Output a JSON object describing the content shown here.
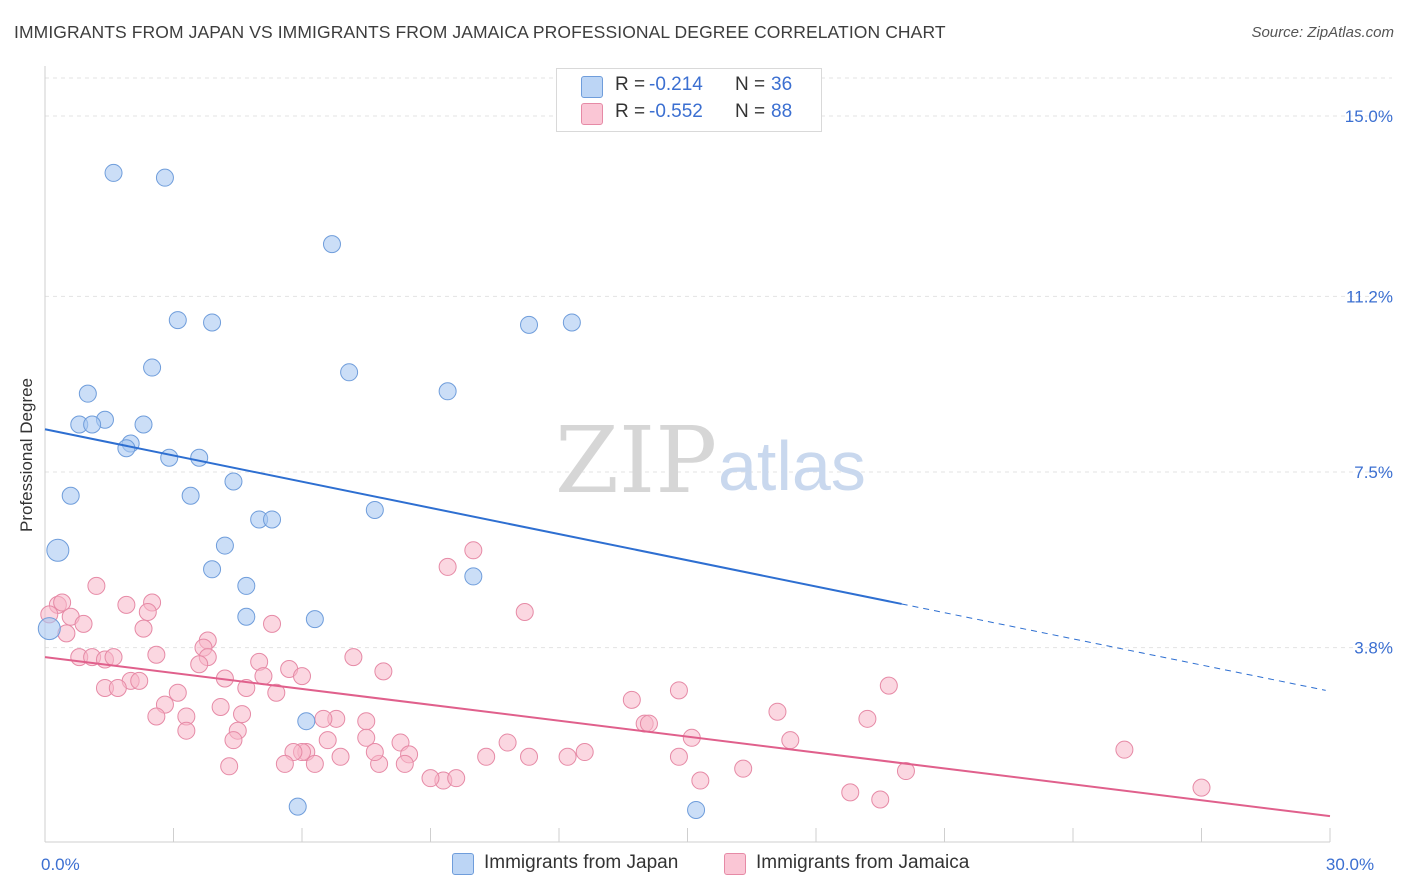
{
  "title": "IMMIGRANTS FROM JAPAN VS IMMIGRANTS FROM JAMAICA PROFESSIONAL DEGREE CORRELATION CHART",
  "source": "Source: ZipAtlas.com",
  "watermark": {
    "zip": "ZIP",
    "atlas": "atlas"
  },
  "legend_top": [
    {
      "r_label": "R =",
      "r_value": "-0.214",
      "n_label": "N =",
      "n_value": "36",
      "color": "#a9c8f2"
    },
    {
      "r_label": "R =",
      "r_value": "-0.552",
      "n_label": "N =",
      "n_value": "88",
      "color": "#f7b6c8"
    }
  ],
  "legend_bottom": [
    {
      "label": "Immigrants from Japan",
      "color": "#a9c8f2"
    },
    {
      "label": "Immigrants from Jamaica",
      "color": "#f7b6c8"
    }
  ],
  "colors": {
    "japan_fill": "#a9c8f2",
    "japan_stroke": "#6f9ddb",
    "japan_line": "#2e6fd1",
    "jamaica_fill": "#f7b6c8",
    "jamaica_stroke": "#e68aa6",
    "jamaica_line": "#e0608c",
    "tick_label": "#3b6fd1",
    "grid": "#e3e3e3"
  },
  "chart_data": {
    "type": "scatter",
    "title": "IMMIGRANTS FROM JAPAN VS IMMIGRANTS FROM JAMAICA PROFESSIONAL DEGREE CORRELATION CHART",
    "xlabel": "",
    "ylabel": "Professional Degree",
    "xlim": [
      0,
      30
    ],
    "ylim": [
      0,
      15.8
    ],
    "x_tick_labels": [
      {
        "value": 0,
        "label": "0.0%"
      },
      {
        "value": 30,
        "label": "30.0%"
      }
    ],
    "y_ticks": [
      {
        "value": 3.8,
        "label": "3.8%"
      },
      {
        "value": 7.5,
        "label": "7.5%"
      },
      {
        "value": 11.2,
        "label": "11.2%"
      },
      {
        "value": 15.0,
        "label": "15.0%"
      }
    ],
    "series": [
      {
        "name": "Immigrants from Japan",
        "r": -0.214,
        "n": 36,
        "trend": {
          "x0": 0,
          "y0": 8.4,
          "x1": 20.0,
          "y1": 4.72,
          "dash_x1": 29.9,
          "dash_y1": 2.9
        },
        "points": [
          [
            1.6,
            13.8
          ],
          [
            2.8,
            13.7
          ],
          [
            6.7,
            12.3
          ],
          [
            3.1,
            10.7
          ],
          [
            3.9,
            10.65
          ],
          [
            11.3,
            10.6
          ],
          [
            12.3,
            10.65
          ],
          [
            2.5,
            9.7
          ],
          [
            7.1,
            9.6
          ],
          [
            1.0,
            9.15
          ],
          [
            9.4,
            9.2
          ],
          [
            1.4,
            8.6
          ],
          [
            0.8,
            8.5
          ],
          [
            1.1,
            8.5
          ],
          [
            2.3,
            8.5
          ],
          [
            2.0,
            8.1
          ],
          [
            1.9,
            8.0
          ],
          [
            3.6,
            7.8
          ],
          [
            2.9,
            7.8
          ],
          [
            4.4,
            7.3
          ],
          [
            0.6,
            7.0
          ],
          [
            3.4,
            7.0
          ],
          [
            7.7,
            6.7
          ],
          [
            5.0,
            6.5
          ],
          [
            5.3,
            6.5
          ],
          [
            0.3,
            5.85
          ],
          [
            4.2,
            5.95
          ],
          [
            3.9,
            5.45
          ],
          [
            10.0,
            5.3
          ],
          [
            4.7,
            5.1
          ],
          [
            4.7,
            4.45
          ],
          [
            6.3,
            4.4
          ],
          [
            0.1,
            4.2
          ],
          [
            6.1,
            2.25
          ],
          [
            5.9,
            0.45
          ],
          [
            15.2,
            0.38
          ]
        ]
      },
      {
        "name": "Immigrants from Jamaica",
        "r": -0.552,
        "n": 88,
        "trend": {
          "x0": 0,
          "y0": 3.6,
          "x1": 30,
          "y1": 0.25
        },
        "points": [
          [
            0.3,
            4.7
          ],
          [
            0.4,
            4.75
          ],
          [
            0.1,
            4.5
          ],
          [
            0.6,
            4.45
          ],
          [
            0.9,
            4.3
          ],
          [
            0.5,
            4.1
          ],
          [
            1.2,
            5.1
          ],
          [
            1.9,
            4.7
          ],
          [
            2.5,
            4.75
          ],
          [
            2.4,
            4.55
          ],
          [
            2.3,
            4.2
          ],
          [
            3.8,
            3.95
          ],
          [
            3.7,
            3.8
          ],
          [
            5.3,
            4.3
          ],
          [
            0.8,
            3.6
          ],
          [
            1.1,
            3.6
          ],
          [
            1.4,
            3.55
          ],
          [
            1.6,
            3.6
          ],
          [
            2.6,
            3.65
          ],
          [
            3.8,
            3.6
          ],
          [
            3.6,
            3.45
          ],
          [
            5.0,
            3.5
          ],
          [
            5.7,
            3.35
          ],
          [
            7.2,
            3.6
          ],
          [
            7.9,
            3.3
          ],
          [
            6.0,
            3.2
          ],
          [
            5.1,
            3.2
          ],
          [
            4.2,
            3.15
          ],
          [
            2.0,
            3.1
          ],
          [
            2.2,
            3.1
          ],
          [
            1.4,
            2.95
          ],
          [
            1.7,
            2.95
          ],
          [
            3.1,
            2.85
          ],
          [
            4.7,
            2.95
          ],
          [
            5.4,
            2.85
          ],
          [
            2.8,
            2.6
          ],
          [
            4.1,
            2.55
          ],
          [
            4.6,
            2.4
          ],
          [
            4.5,
            2.05
          ],
          [
            6.8,
            2.3
          ],
          [
            7.5,
            2.25
          ],
          [
            6.5,
            2.3
          ],
          [
            2.6,
            2.35
          ],
          [
            3.3,
            2.35
          ],
          [
            3.3,
            2.05
          ],
          [
            4.4,
            1.85
          ],
          [
            6.6,
            1.85
          ],
          [
            7.5,
            1.9
          ],
          [
            8.3,
            1.8
          ],
          [
            6.1,
            1.6
          ],
          [
            6.0,
            1.6
          ],
          [
            5.8,
            1.6
          ],
          [
            6.9,
            1.5
          ],
          [
            8.5,
            1.55
          ],
          [
            8.4,
            1.35
          ],
          [
            4.3,
            1.3
          ],
          [
            5.6,
            1.35
          ],
          [
            6.3,
            1.35
          ],
          [
            7.8,
            1.35
          ],
          [
            9.3,
            1.0
          ],
          [
            9.6,
            1.05
          ],
          [
            10.3,
            1.5
          ],
          [
            10.8,
            1.8
          ],
          [
            11.3,
            1.5
          ],
          [
            12.2,
            1.5
          ],
          [
            12.6,
            1.6
          ],
          [
            13.7,
            2.7
          ],
          [
            14.0,
            2.2
          ],
          [
            14.1,
            2.2
          ],
          [
            14.8,
            2.9
          ],
          [
            15.1,
            1.9
          ],
          [
            14.8,
            1.5
          ],
          [
            15.3,
            1.0
          ],
          [
            16.3,
            1.25
          ],
          [
            17.1,
            2.45
          ],
          [
            17.4,
            1.85
          ],
          [
            19.2,
            2.3
          ],
          [
            19.7,
            3.0
          ],
          [
            18.8,
            0.75
          ],
          [
            19.5,
            0.6
          ],
          [
            20.1,
            1.2
          ],
          [
            25.2,
            1.65
          ],
          [
            27.0,
            0.85
          ],
          [
            7.7,
            1.6
          ],
          [
            9.0,
            1.05
          ],
          [
            10.0,
            5.85
          ],
          [
            9.4,
            5.5
          ],
          [
            11.2,
            4.55
          ]
        ]
      }
    ]
  }
}
